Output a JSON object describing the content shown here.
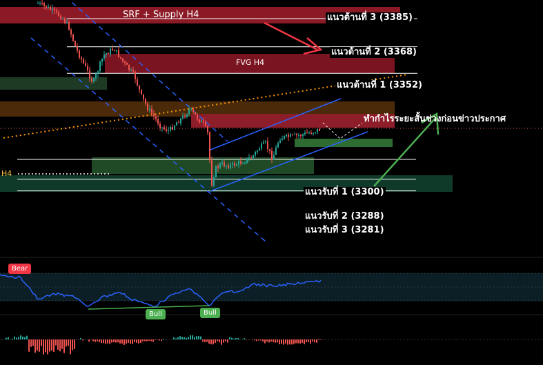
{
  "chart_data": [
    {
      "type": "candlestick",
      "title": "",
      "levels": {
        "resistance": [
          {
            "label": "แนวต้านที่ 3 (3385)",
            "value": 3385
          },
          {
            "label": "แนวต้านที่ 2 (3368)",
            "value": 3368
          },
          {
            "label": "แนวต้านที่ 1 (3352)",
            "value": 3352
          }
        ],
        "support": [
          {
            "label": "แนวรับที่ 1 (3300)",
            "value": 3300
          },
          {
            "label": "แนวรับที่ 2 (3288)",
            "value": 3288
          },
          {
            "label": "แนวรับที่ 3 (3281)",
            "value": 3281
          }
        ]
      },
      "zones": [
        {
          "label": "SRF + Supply H4",
          "color": "#8b1a26"
        },
        {
          "label": "FVG H4",
          "color": "#7a1420"
        },
        {
          "label": "H4",
          "color": "#0f3a2a"
        }
      ],
      "annotation": "ทำกำไรระยะสั้นช่วงก่อนข่าวประกาศ",
      "colors": {
        "up": "#26a69a",
        "down": "#ef5350",
        "channel": "#2962ff",
        "trend": "#ff9800",
        "arrow_up": "#4caf50",
        "arrow_down": "#f23645"
      }
    },
    {
      "type": "line",
      "name": "oscillator",
      "badges": {
        "bear": "Bear",
        "bull_1": "Bull",
        "bull_2": "Bull"
      },
      "colors": {
        "line": "#2962ff",
        "divergence": "#4caf50",
        "bear_badge": "#f23645",
        "bull_badge": "#4caf50"
      }
    },
    {
      "type": "histogram",
      "name": "momentum",
      "colors": {
        "positive": "#26a69a",
        "negative": "#ef5350"
      }
    }
  ]
}
